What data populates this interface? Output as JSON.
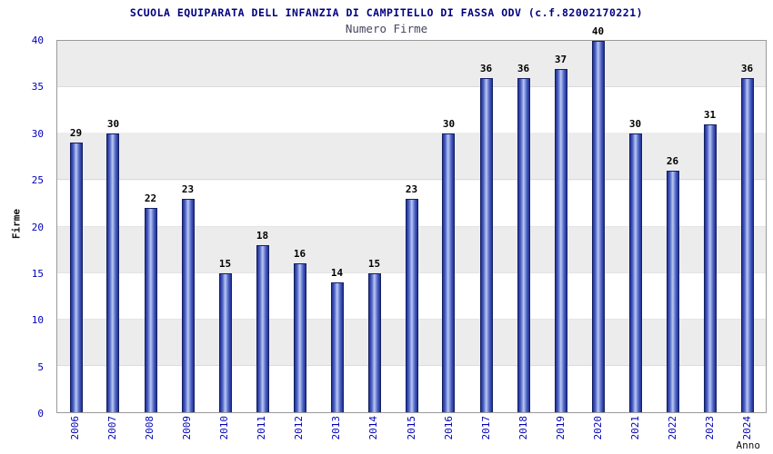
{
  "chart_data": {
    "type": "bar",
    "title": "SCUOLA EQUIPARATA DELL INFANZIA DI CAMPITELLO DI FASSA ODV (c.f.82002170221)",
    "subtitle": "Numero Firme",
    "xlabel": "Anno",
    "ylabel": "Firme",
    "ylim": [
      0,
      40
    ],
    "ytick_step": 5,
    "grid": true,
    "legend": "none",
    "categories": [
      "2006",
      "2007",
      "2008",
      "2009",
      "2010",
      "2011",
      "2012",
      "2013",
      "2014",
      "2015",
      "2016",
      "2017",
      "2018",
      "2019",
      "2020",
      "2021",
      "2022",
      "2023",
      "2024"
    ],
    "values": [
      29,
      30,
      22,
      23,
      15,
      18,
      16,
      14,
      15,
      23,
      30,
      36,
      36,
      37,
      40,
      30,
      26,
      31,
      36
    ],
    "colors": {
      "bar_dark": "#1f2f93",
      "bar_light": "#b9c7f3",
      "bar_border": "#141f63",
      "tick_label": "#0000b8",
      "band_gray": "#ececec",
      "title": "#000080"
    }
  }
}
